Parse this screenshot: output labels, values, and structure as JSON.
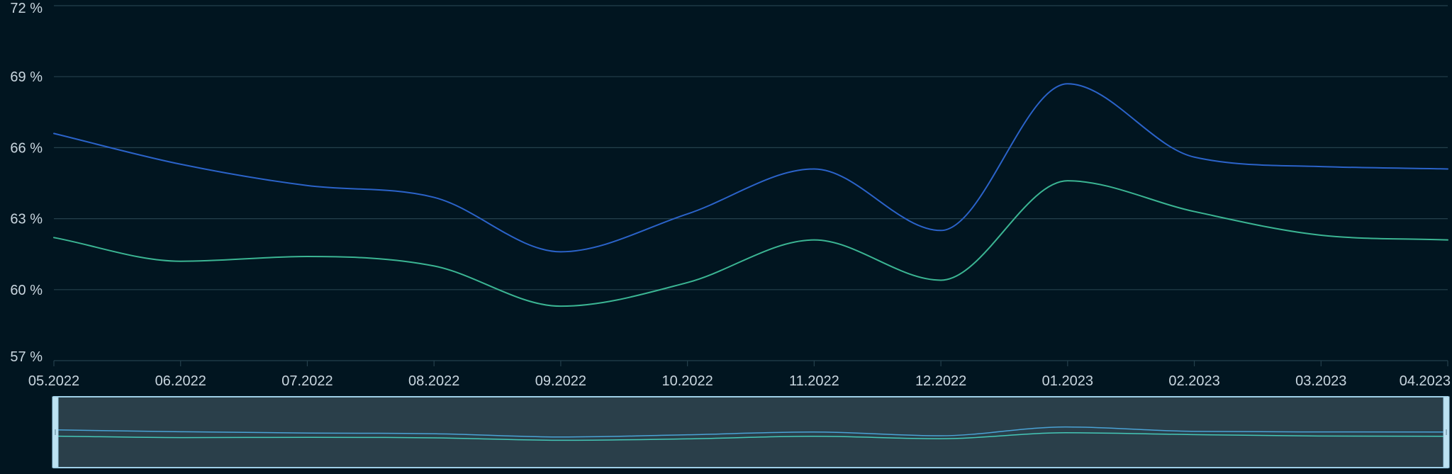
{
  "colors": {
    "background": "#011520",
    "grid": "#24404c",
    "axis_text": "#c9d6df",
    "navigator_fill": "#2a3f4a",
    "navigator_border": "#9fcfe6",
    "navigator_handle": "#bde2f2"
  },
  "chart_data": {
    "type": "line",
    "title": "",
    "xlabel": "",
    "ylabel": "",
    "ylim": [
      57,
      72
    ],
    "y_ticks": [
      57,
      60,
      63,
      66,
      69,
      72
    ],
    "y_tick_labels": [
      "57 %",
      "60 %",
      "63 %",
      "66 %",
      "69 %",
      "72 %"
    ],
    "x_tick_labels": [
      "05.2022",
      "06.2022",
      "07.2022",
      "08.2022",
      "09.2022",
      "10.2022",
      "11.2022",
      "12.2022",
      "01.2023",
      "02.2023",
      "03.2023",
      "04.2023"
    ],
    "grid": true,
    "legend": "none",
    "smooth": true,
    "series": [
      {
        "color": "#2b63c9",
        "values": [
          66.6,
          65.3,
          64.4,
          63.9,
          61.6,
          63.2,
          65.1,
          62.5,
          68.7,
          65.6,
          65.2,
          65.1
        ]
      },
      {
        "color": "#3bb593",
        "values": [
          62.2,
          61.2,
          61.4,
          61.0,
          59.3,
          60.3,
          62.1,
          60.4,
          64.6,
          63.3,
          62.3,
          62.1
        ]
      }
    ],
    "navigator": true
  }
}
